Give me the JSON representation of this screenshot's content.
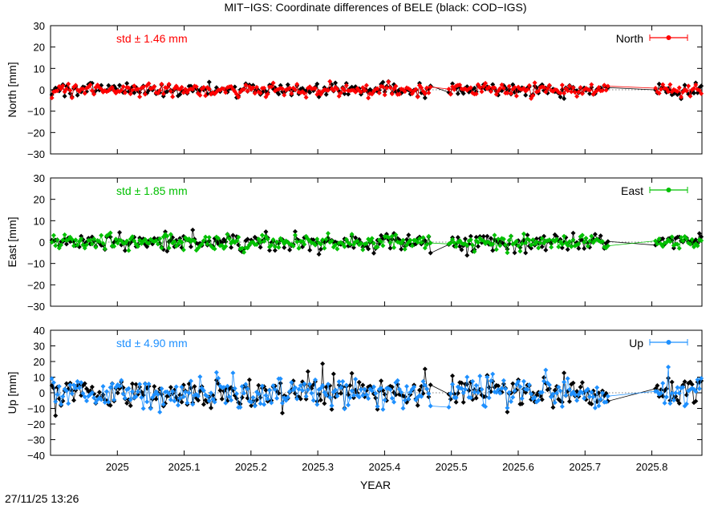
{
  "figure": {
    "title": "MIT−IGS: Coordinate differences of BELE (black: COD−IGS)",
    "xlabel": "YEAR",
    "timestamp": "27/11/25 13:26"
  },
  "chart_data": [
    {
      "type": "scatter",
      "panel": "north",
      "ylabel": "North [mm]",
      "ylim": [
        -30,
        30
      ],
      "yticks": [
        -30,
        -20,
        -10,
        0,
        10,
        20,
        30
      ],
      "xlim": [
        2024.9,
        2025.875
      ],
      "xticks": [
        2025,
        2025.1,
        2025.2,
        2025.3,
        2025.4,
        2025.5,
        2025.6,
        2025.7,
        2025.8
      ],
      "std_label": "std ± 1.46 mm",
      "legend": "North",
      "color": "#ff0000",
      "reference_color": "#000000",
      "amplitude": 1.46
    },
    {
      "type": "scatter",
      "panel": "east",
      "ylabel": "East [mm]",
      "ylim": [
        -30,
        30
      ],
      "yticks": [
        -30,
        -20,
        -10,
        0,
        10,
        20,
        30
      ],
      "xlim": [
        2024.9,
        2025.875
      ],
      "xticks": [
        2025,
        2025.1,
        2025.2,
        2025.3,
        2025.4,
        2025.5,
        2025.6,
        2025.7,
        2025.8
      ],
      "std_label": "std ± 1.85 mm",
      "legend": "East",
      "color": "#00c000",
      "reference_color": "#000000",
      "amplitude": 1.85
    },
    {
      "type": "scatter",
      "panel": "up",
      "ylabel": "Up [mm]",
      "ylim": [
        -40,
        40
      ],
      "yticks": [
        -40,
        -30,
        -20,
        -10,
        0,
        10,
        20,
        30,
        40
      ],
      "xlim": [
        2024.9,
        2025.875
      ],
      "xticks": [
        2025,
        2025.1,
        2025.2,
        2025.3,
        2025.4,
        2025.5,
        2025.6,
        2025.7,
        2025.8
      ],
      "std_label": "std ± 4.90 mm",
      "legend": "Up",
      "color": "#1e90ff",
      "reference_color": "#000000",
      "amplitude": 4.9
    }
  ]
}
